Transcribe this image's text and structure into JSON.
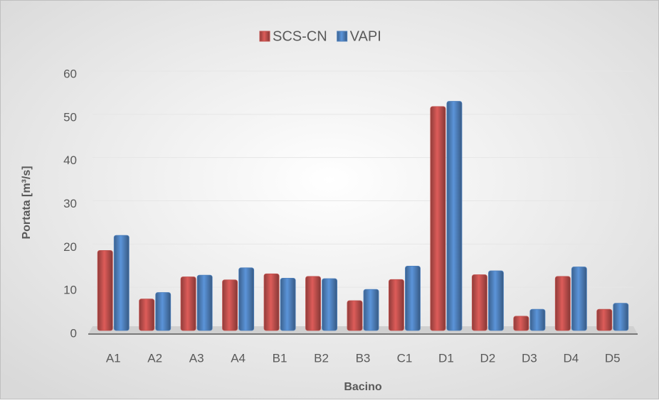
{
  "chart_data": {
    "type": "bar",
    "x_label": "Bacino",
    "y_label": "Portata [m³/s]",
    "categories": [
      "A1",
      "A2",
      "A3",
      "A4",
      "B1",
      "B2",
      "B3",
      "C1",
      "D1",
      "D2",
      "D3",
      "D4",
      "D5"
    ],
    "series": [
      {
        "name": "SCS-CN",
        "color": "#c0504d",
        "values": [
          18.5,
          7.3,
          12.4,
          11.7,
          13.1,
          12.5,
          6.9,
          11.8,
          51.8,
          12.9,
          3.3,
          12.5,
          4.9
        ]
      },
      {
        "name": "VAPI",
        "color": "#4f81bd",
        "values": [
          22.0,
          8.8,
          12.8,
          14.5,
          12.1,
          12.0,
          9.5,
          14.9,
          53.0,
          13.8,
          4.9,
          14.7,
          6.3
        ]
      }
    ],
    "ylim": [
      0,
      60
    ],
    "yticks": [
      0,
      10,
      20,
      30,
      40,
      50,
      60
    ],
    "grid": true,
    "legend": "top"
  }
}
